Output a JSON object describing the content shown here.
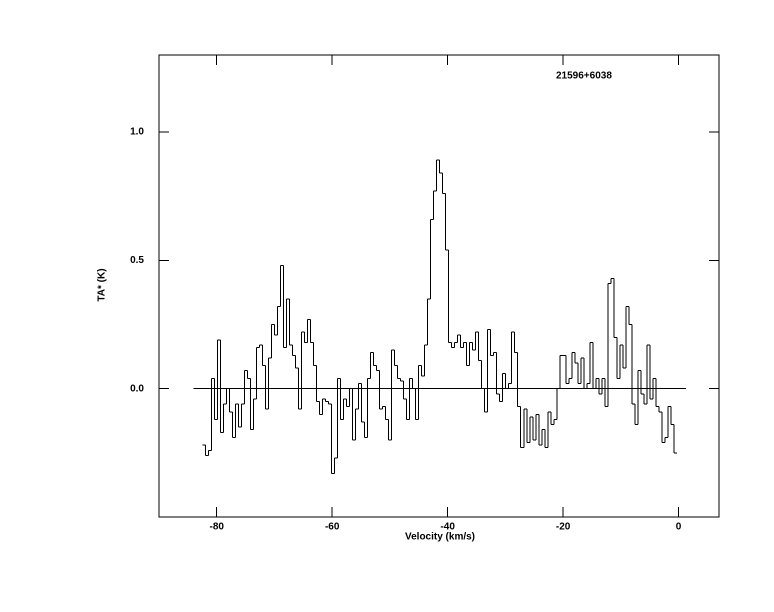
{
  "chart_data": {
    "type": "step",
    "title": "21596+6038",
    "x_label": "Velocity (km/s)",
    "y_label": "TA* (K)",
    "xlim": [
      -90,
      7
    ],
    "ylim": [
      -0.5,
      1.3
    ],
    "xticks": [
      -80,
      -60,
      -40,
      -20,
      0
    ],
    "yticks": [
      {
        "value": 0,
        "label": "0.0"
      },
      {
        "value": 0.5,
        "label": "0.5"
      },
      {
        "value": 1,
        "label": "1.0"
      }
    ],
    "zero_line": true,
    "color": "#000000",
    "x": [
      -82.2,
      -81.68,
      -81.16,
      -80.64,
      -80.12,
      -79.6,
      -79.08,
      -78.56,
      -78.04,
      -77.52,
      -77,
      -76.48,
      -75.96,
      -75.44,
      -74.92,
      -74.4,
      -73.88,
      -73.36,
      -72.84,
      -72.32,
      -71.8,
      -71.28,
      -70.76,
      -70.24,
      -69.72,
      -69.2,
      -68.68,
      -68.16,
      -67.64,
      -67.12,
      -66.6,
      -66.08,
      -65.56,
      -65.04,
      -64.52,
      -64,
      -63.48,
      -62.96,
      -62.44,
      -61.92,
      -61.4,
      -60.88,
      -60.36,
      -59.84,
      -59.32,
      -58.8,
      -58.28,
      -57.76,
      -57.24,
      -56.72,
      -56.2,
      -55.68,
      -55.16,
      -54.64,
      -54.12,
      -53.6,
      -53.08,
      -52.56,
      -52.04,
      -51.52,
      -51,
      -50.48,
      -49.96,
      -49.44,
      -48.92,
      -48.4,
      -47.88,
      -47.36,
      -46.84,
      -46.32,
      -45.8,
      -45.28,
      -44.76,
      -44.24,
      -43.72,
      -43.2,
      -42.68,
      -42.16,
      -41.64,
      -41.12,
      -40.6,
      -40.08,
      -39.56,
      -39.04,
      -38.52,
      -38,
      -37.48,
      -36.96,
      -36.44,
      -35.92,
      -35.4,
      -34.88,
      -34.36,
      -33.84,
      -33.32,
      -32.8,
      -32.28,
      -31.76,
      -31.24,
      -30.72,
      -30.2,
      -29.68,
      -29.16,
      -28.64,
      -28.12,
      -27.6,
      -27.08,
      -26.56,
      -26.04,
      -25.52,
      -25,
      -24.48,
      -23.96,
      -23.44,
      -22.92,
      -22.4,
      -21.88,
      -21.36,
      -20.84,
      -20.32,
      -19.8,
      -19.28,
      -18.76,
      -18.24,
      -17.72,
      -17.2,
      -16.68,
      -16.16,
      -15.64,
      -15.12,
      -14.6,
      -14.08,
      -13.56,
      -13.04,
      -12.52,
      -12,
      -11.48,
      -10.96,
      -10.44,
      -9.92,
      -9.4,
      -8.88,
      -8.36,
      -7.84,
      -7.32,
      -6.8,
      -6.28,
      -5.76,
      -5.24,
      -4.72,
      -4.2,
      -3.68,
      -3.16,
      -2.64,
      -2.12,
      -1.6,
      -1.08,
      -0.56
    ],
    "values": [
      -0.22,
      -0.26,
      -0.24,
      0.04,
      -0.12,
      0.19,
      -0.17,
      -0.06,
      0,
      -0.09,
      -0.19,
      -0.06,
      -0.15,
      -0.06,
      0.07,
      0.04,
      -0.16,
      -0.04,
      0.16,
      0.17,
      0.09,
      -0.08,
      0.12,
      0.25,
      0.21,
      0.32,
      0.48,
      0.16,
      0.35,
      0.17,
      0.13,
      0.08,
      -0.08,
      0.22,
      0.18,
      0.27,
      0.18,
      0.09,
      -0.05,
      -0.1,
      -0.04,
      -0.05,
      -0.06,
      -0.33,
      -0.27,
      0.04,
      -0.12,
      -0.04,
      -0.07,
      0,
      -0.2,
      -0.08,
      0.02,
      -0.13,
      -0.19,
      0.04,
      0.14,
      0.09,
      0.07,
      -0.08,
      -0.07,
      -0.12,
      -0.2,
      0.15,
      0.09,
      0.04,
      0.03,
      -0.04,
      -0.12,
      0.04,
      0,
      -0.12,
      0.09,
      0.05,
      0.17,
      0.35,
      0.66,
      0.77,
      0.89,
      0.84,
      0.76,
      0.54,
      0.18,
      0.16,
      0.18,
      0.21,
      0.16,
      0.18,
      0.09,
      0.18,
      0.15,
      0.22,
      0.11,
      0,
      -0.09,
      0.23,
      0.13,
      0.14,
      -0.02,
      -0.05,
      0.06,
      0,
      0.02,
      0.22,
      0.14,
      -0.07,
      -0.23,
      -0.08,
      -0.21,
      -0.11,
      -0.2,
      -0.1,
      -0.22,
      -0.16,
      -0.23,
      -0.09,
      -0.14,
      -0.12,
      0,
      0.13,
      0.13,
      0.02,
      0.04,
      0.14,
      0.1,
      0.02,
      0.12,
      0,
      0.02,
      0.18,
      0,
      0.04,
      -0.02,
      0.04,
      -0.07,
      0.41,
      0.43,
      0.2,
      0.04,
      0.17,
      0.08,
      0.32,
      0.25,
      -0.06,
      -0.14,
      0.07,
      -0.02,
      -0.06,
      0.17,
      -0.04,
      0.04,
      -0.07,
      -0.09,
      -0.21,
      -0.19,
      -0.07,
      -0.14,
      -0.25
    ]
  }
}
